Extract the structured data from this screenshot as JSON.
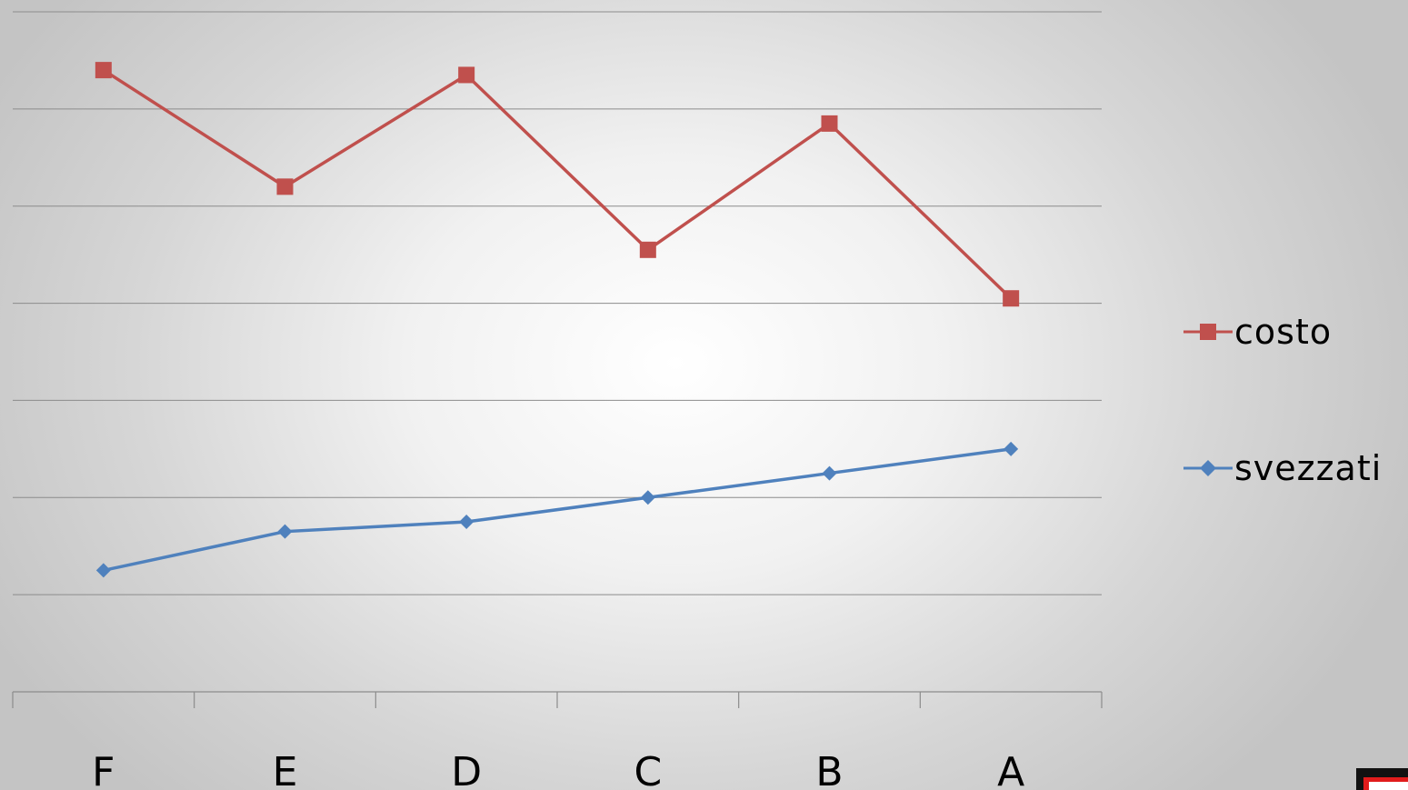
{
  "chart_data": {
    "type": "line",
    "categories": [
      "F",
      "E",
      "D",
      "C",
      "B",
      "A"
    ],
    "series": [
      {
        "name": "costo",
        "values": [
          64,
          52,
          63.5,
          45.5,
          58.5,
          40.5
        ],
        "color": "#c0504d",
        "marker": "square"
      },
      {
        "name": "svezzati",
        "values": [
          12.5,
          16.5,
          17.5,
          20,
          22.5,
          25
        ],
        "color": "#4f81bd",
        "marker": "diamond"
      }
    ],
    "ylim": [
      0,
      70
    ],
    "grid": true,
    "show_y_tick_labels": false,
    "legend_position": "right",
    "title": "",
    "xlabel": "",
    "ylabel": ""
  },
  "corner_mark": {
    "colors": [
      "#111111",
      "#e11c1c"
    ]
  }
}
